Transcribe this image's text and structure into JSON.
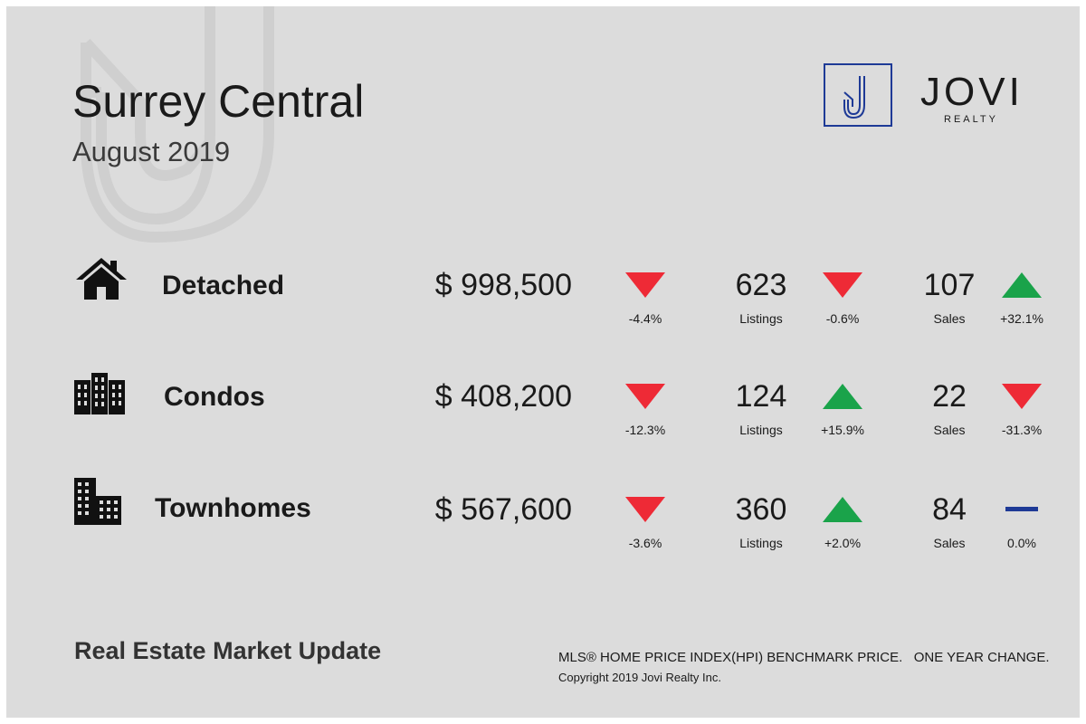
{
  "header": {
    "title": "Surrey Central",
    "subtitle": "August 2019"
  },
  "logo": {
    "name": "JOVI",
    "sub": "REALTY",
    "mark": "J",
    "color": "#1e3a96"
  },
  "colors": {
    "up": "#1aa34a",
    "down": "#ee2a36",
    "flat": "#1e3a96"
  },
  "rows": [
    {
      "type": "Detached",
      "icon": "house-icon",
      "price": "$ 998,500",
      "price_change": "-4.4%",
      "price_dir": "down",
      "listings": "623",
      "listings_label": "Listings",
      "listings_change": "-0.6%",
      "listings_dir": "down",
      "sales": "107",
      "sales_label": "Sales",
      "sales_change": "+32.1%",
      "sales_dir": "up"
    },
    {
      "type": "Condos",
      "icon": "condo-building-icon",
      "price": "$ 408,200",
      "price_change": "-12.3%",
      "price_dir": "down",
      "listings": "124",
      "listings_label": "Listings",
      "listings_change": "+15.9%",
      "listings_dir": "up",
      "sales": "22",
      "sales_label": "Sales",
      "sales_change": "-31.3%",
      "sales_dir": "down"
    },
    {
      "type": "Townhomes",
      "icon": "townhome-building-icon",
      "price": "$ 567,600",
      "price_change": "-3.6%",
      "price_dir": "down",
      "listings": "360",
      "listings_label": "Listings",
      "listings_change": "+2.0%",
      "listings_dir": "up",
      "sales": "84",
      "sales_label": "Sales",
      "sales_change": "0.0%",
      "sales_dir": "flat"
    }
  ],
  "footer": {
    "left": "Real Estate Market Update",
    "right": "MLS® HOME PRICE INDEX(HPI) BENCHMARK PRICE.   ONE YEAR CHANGE.",
    "copyright": "Copyright 2019 Jovi Realty Inc."
  }
}
